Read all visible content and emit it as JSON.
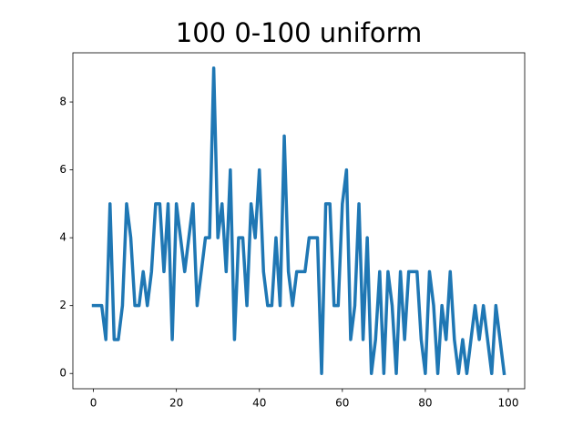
{
  "chart_data": {
    "type": "line",
    "title": "100 0-100 uniform",
    "x": [
      0,
      1,
      2,
      3,
      4,
      5,
      6,
      7,
      8,
      9,
      10,
      11,
      12,
      13,
      14,
      15,
      16,
      17,
      18,
      19,
      20,
      21,
      22,
      23,
      24,
      25,
      26,
      27,
      28,
      29,
      30,
      31,
      32,
      33,
      34,
      35,
      36,
      37,
      38,
      39,
      40,
      41,
      42,
      43,
      44,
      45,
      46,
      47,
      48,
      49,
      50,
      51,
      52,
      53,
      54,
      55,
      56,
      57,
      58,
      59,
      60,
      61,
      62,
      63,
      64,
      65,
      66,
      67,
      68,
      69,
      70,
      71,
      72,
      73,
      74,
      75,
      76,
      77,
      78,
      79,
      80,
      81,
      82,
      83,
      84,
      85,
      86,
      87,
      88,
      89,
      90,
      91,
      92,
      93,
      94,
      95,
      96,
      97,
      98,
      99
    ],
    "values": [
      2,
      2,
      2,
      1,
      5,
      1,
      1,
      2,
      5,
      4,
      2,
      2,
      3,
      2,
      3,
      5,
      5,
      3,
      5,
      1,
      5,
      4,
      3,
      4,
      5,
      2,
      3,
      4,
      4,
      9,
      4,
      5,
      3,
      6,
      1,
      4,
      4,
      2,
      5,
      4,
      6,
      3,
      2,
      2,
      4,
      2,
      7,
      3,
      2,
      3,
      3,
      3,
      4,
      4,
      4,
      0,
      5,
      5,
      2,
      2,
      5,
      6,
      1,
      2,
      5,
      1,
      4,
      0,
      1,
      3,
      0,
      3,
      2,
      0,
      3,
      1,
      3,
      3,
      3,
      1,
      0,
      3,
      2,
      0,
      2,
      1,
      3,
      1,
      0,
      1,
      0,
      1,
      2,
      1,
      2,
      1,
      0,
      2,
      1,
      0
    ],
    "color": "#1f77b4",
    "xlim": [
      -4.95,
      103.95
    ],
    "xticks": [
      0,
      20,
      40,
      60,
      80,
      100
    ],
    "ylim": [
      -0.45,
      9.45
    ],
    "yticks": [
      0,
      2,
      4,
      6,
      8
    ]
  }
}
